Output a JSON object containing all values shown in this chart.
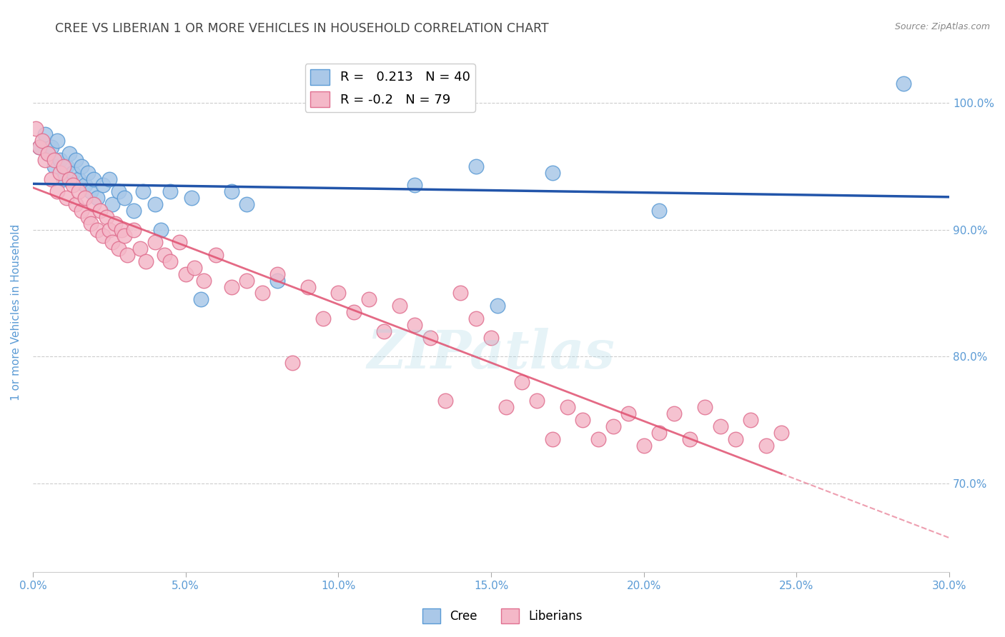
{
  "title": "CREE VS LIBERIAN 1 OR MORE VEHICLES IN HOUSEHOLD CORRELATION CHART",
  "source": "Source: ZipAtlas.com",
  "ylabel": "1 or more Vehicles in Household",
  "x_tick_labels": [
    "0.0%",
    "5.0%",
    "10.0%",
    "15.0%",
    "20.0%",
    "25.0%",
    "30.0%"
  ],
  "x_tick_values": [
    0.0,
    5.0,
    10.0,
    15.0,
    20.0,
    25.0,
    30.0
  ],
  "y_tick_labels": [
    "70.0%",
    "80.0%",
    "90.0%",
    "100.0%"
  ],
  "y_tick_values": [
    70.0,
    80.0,
    90.0,
    100.0
  ],
  "xlim": [
    0.0,
    30.0
  ],
  "ylim": [
    63.0,
    104.0
  ],
  "cree_R": 0.213,
  "cree_N": 40,
  "liberian_R": -0.2,
  "liberian_N": 79,
  "cree_color": "#aac8e8",
  "cree_edge_color": "#5b9bd5",
  "liberian_color": "#f4b8c8",
  "liberian_edge_color": "#e07090",
  "trend_cree_color": "#2255aa",
  "trend_liberian_color": "#e05070",
  "background_color": "#ffffff",
  "grid_color": "#cccccc",
  "title_color": "#444444",
  "tick_color": "#5b9bd5",
  "cree_points_x": [
    0.2,
    0.4,
    0.5,
    0.6,
    0.7,
    0.8,
    0.9,
    1.0,
    1.1,
    1.2,
    1.3,
    1.4,
    1.5,
    1.6,
    1.7,
    1.8,
    1.9,
    2.0,
    2.1,
    2.3,
    2.5,
    2.6,
    2.8,
    3.0,
    3.3,
    3.6,
    4.0,
    4.2,
    4.5,
    5.2,
    5.5,
    6.5,
    7.0,
    8.0,
    12.5,
    14.5,
    15.2,
    17.0,
    20.5,
    28.5
  ],
  "cree_points_y": [
    96.5,
    97.5,
    96.0,
    96.5,
    95.0,
    97.0,
    95.5,
    94.0,
    95.0,
    96.0,
    94.5,
    95.5,
    94.0,
    95.0,
    93.5,
    94.5,
    93.0,
    94.0,
    92.5,
    93.5,
    94.0,
    92.0,
    93.0,
    92.5,
    91.5,
    93.0,
    92.0,
    90.0,
    93.0,
    92.5,
    84.5,
    93.0,
    92.0,
    86.0,
    93.5,
    95.0,
    84.0,
    94.5,
    91.5,
    101.5
  ],
  "liberian_points_x": [
    0.1,
    0.2,
    0.3,
    0.4,
    0.5,
    0.6,
    0.7,
    0.8,
    0.9,
    1.0,
    1.1,
    1.2,
    1.3,
    1.4,
    1.5,
    1.6,
    1.7,
    1.8,
    1.9,
    2.0,
    2.1,
    2.2,
    2.3,
    2.4,
    2.5,
    2.6,
    2.7,
    2.8,
    2.9,
    3.0,
    3.1,
    3.3,
    3.5,
    3.7,
    4.0,
    4.3,
    4.5,
    4.8,
    5.0,
    5.3,
    5.6,
    6.0,
    6.5,
    7.0,
    7.5,
    8.0,
    8.5,
    9.0,
    9.5,
    10.0,
    10.5,
    11.0,
    11.5,
    12.0,
    12.5,
    13.0,
    13.5,
    14.0,
    14.5,
    15.0,
    15.5,
    16.0,
    16.5,
    17.0,
    17.5,
    18.0,
    18.5,
    19.0,
    19.5,
    20.0,
    20.5,
    21.0,
    21.5,
    22.0,
    22.5,
    23.0,
    23.5,
    24.0,
    24.5
  ],
  "liberian_points_y": [
    98.0,
    96.5,
    97.0,
    95.5,
    96.0,
    94.0,
    95.5,
    93.0,
    94.5,
    95.0,
    92.5,
    94.0,
    93.5,
    92.0,
    93.0,
    91.5,
    92.5,
    91.0,
    90.5,
    92.0,
    90.0,
    91.5,
    89.5,
    91.0,
    90.0,
    89.0,
    90.5,
    88.5,
    90.0,
    89.5,
    88.0,
    90.0,
    88.5,
    87.5,
    89.0,
    88.0,
    87.5,
    89.0,
    86.5,
    87.0,
    86.0,
    88.0,
    85.5,
    86.0,
    85.0,
    86.5,
    79.5,
    85.5,
    83.0,
    85.0,
    83.5,
    84.5,
    82.0,
    84.0,
    82.5,
    81.5,
    76.5,
    85.0,
    83.0,
    81.5,
    76.0,
    78.0,
    76.5,
    73.5,
    76.0,
    75.0,
    73.5,
    74.5,
    75.5,
    73.0,
    74.0,
    75.5,
    73.5,
    76.0,
    74.5,
    73.5,
    75.0,
    73.0,
    74.0
  ]
}
